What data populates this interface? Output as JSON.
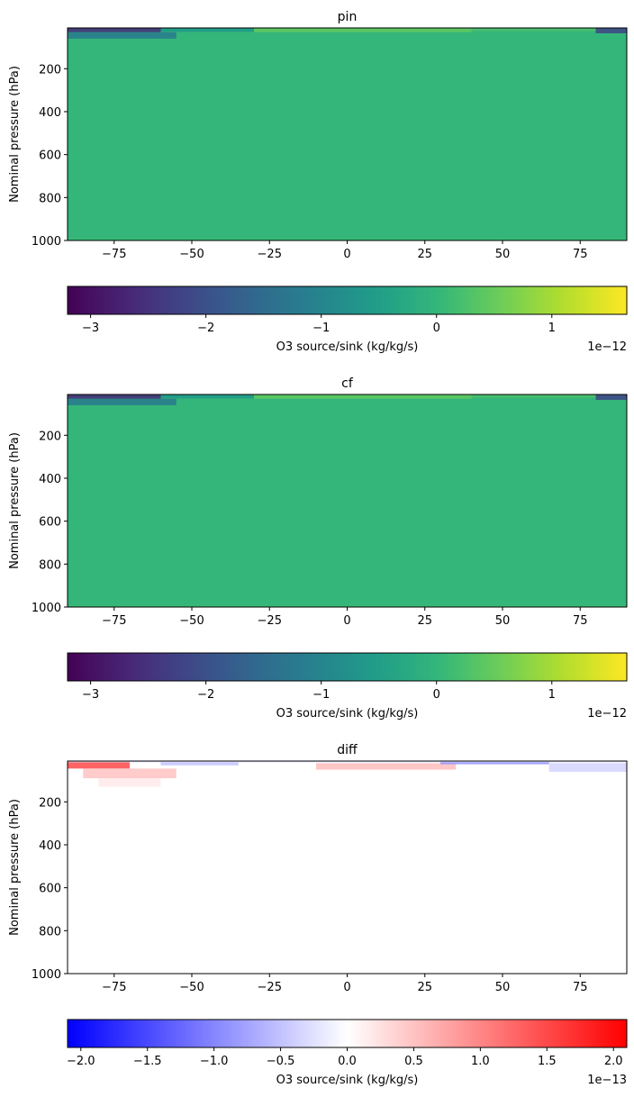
{
  "chart_data": [
    {
      "type": "heatmap",
      "title": "pin",
      "xlabel": "",
      "ylabel": "Nominal pressure (hPa)",
      "xlim": [
        -90,
        90
      ],
      "ylim": [
        1000,
        10
      ],
      "yaxis_inverted": true,
      "xticks": [
        -75,
        -50,
        -25,
        0,
        25,
        50,
        75
      ],
      "xtick_labels": [
        "−75",
        "−50",
        "−25",
        "0",
        "25",
        "50",
        "75"
      ],
      "yticks": [
        200,
        400,
        600,
        800,
        1000
      ],
      "ytick_labels": [
        "200",
        "400",
        "600",
        "800",
        "1000"
      ],
      "colormap": "viridis",
      "field_description": "Nearly uniform value ~0 across the domain; negative band (~-2e-12) near the model top at high southern latitudes, slight positive (~0.5e-12) near top around equator",
      "colorbar": {
        "label": "O3 source/sink (kg/kg/s)",
        "range": [
          -3.2,
          1.65
        ],
        "ticks": [
          -3,
          -2,
          -1,
          0,
          1
        ],
        "tick_labels": [
          "−3",
          "−2",
          "−1",
          "0",
          "1"
        ],
        "offset_text": "1e−12"
      }
    },
    {
      "type": "heatmap",
      "title": "cf",
      "xlabel": "",
      "ylabel": "Nominal pressure (hPa)",
      "xlim": [
        -90,
        90
      ],
      "ylim": [
        1000,
        10
      ],
      "yaxis_inverted": true,
      "xticks": [
        -75,
        -50,
        -25,
        0,
        25,
        50,
        75
      ],
      "xtick_labels": [
        "−75",
        "−50",
        "−25",
        "0",
        "25",
        "50",
        "75"
      ],
      "yticks": [
        200,
        400,
        600,
        800,
        1000
      ],
      "ytick_labels": [
        "200",
        "400",
        "600",
        "800",
        "1000"
      ],
      "colormap": "viridis",
      "field_description": "Nearly uniform value ~0 across the domain; negative band near the model top at high latitudes, slight positive near top around equator",
      "colorbar": {
        "label": "O3 source/sink (kg/kg/s)",
        "range": [
          -3.2,
          1.65
        ],
        "ticks": [
          -3,
          -2,
          -1,
          0,
          1
        ],
        "tick_labels": [
          "−3",
          "−2",
          "−1",
          "0",
          "1"
        ],
        "offset_text": "1e−12"
      }
    },
    {
      "type": "heatmap",
      "title": "diff",
      "xlabel": "",
      "ylabel": "Nominal pressure (hPa)",
      "xlim": [
        -90,
        90
      ],
      "ylim": [
        1000,
        10
      ],
      "yaxis_inverted": true,
      "xticks": [
        -75,
        -50,
        -25,
        0,
        25,
        50,
        75
      ],
      "xtick_labels": [
        "−75",
        "−50",
        "−25",
        "0",
        "25",
        "50",
        "75"
      ],
      "yticks": [
        200,
        400,
        600,
        800,
        1000
      ],
      "ytick_labels": [
        "200",
        "400",
        "600",
        "800",
        "1000"
      ],
      "colormap": "bwr",
      "field_description": "Near zero everywhere; positive (red, up to ~2e-13) near top at southern high latitudes and around 0-30, negative (blue) near top near 50-90",
      "colorbar": {
        "label": "O3 source/sink (kg/kg/s)",
        "range": [
          -2.1,
          2.1
        ],
        "ticks": [
          -2.0,
          -1.5,
          -1.0,
          -0.5,
          0.0,
          0.5,
          1.0,
          1.5,
          2.0
        ],
        "tick_labels": [
          "−2.0",
          "−1.5",
          "−1.0",
          "−0.5",
          "0.0",
          "0.5",
          "1.0",
          "1.5",
          "2.0"
        ],
        "offset_text": "1e−13"
      }
    }
  ]
}
